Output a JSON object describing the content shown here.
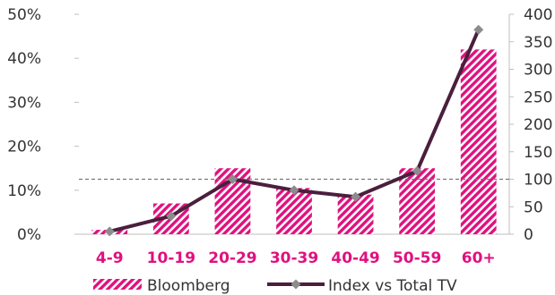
{
  "chart_data": {
    "type": "bar",
    "categories": [
      "4-9",
      "10-19",
      "20-29",
      "30-39",
      "40-49",
      "50-59",
      "60+"
    ],
    "series": [
      {
        "name": "Bloomberg",
        "type": "bar",
        "axis": "left",
        "values": [
          0.01,
          0.07,
          0.15,
          0.105,
          0.09,
          0.15,
          0.42
        ],
        "color": "#e0117f"
      },
      {
        "name": "Index vs Total TV",
        "type": "line",
        "axis": "right",
        "values": [
          5,
          33,
          100,
          80,
          68,
          115,
          372
        ],
        "color": "#4a1f3d",
        "marker_color": "#8c8c8c"
      }
    ],
    "y_left": {
      "range": [
        0,
        0.5
      ],
      "ticks": [
        "0%",
        "10%",
        "20%",
        "30%",
        "40%",
        "50%"
      ]
    },
    "y_right": {
      "range": [
        0,
        400
      ],
      "ticks": [
        "0",
        "50",
        "100",
        "150",
        "200",
        "250",
        "300",
        "350",
        "400"
      ]
    },
    "reference_line": {
      "axis": "right",
      "value": 100,
      "style": "dashed",
      "color": "#777777"
    },
    "category_label_color": "#e0117f",
    "legend": {
      "placement": "bottom",
      "entries": [
        "Bloomberg",
        "Index vs Total TV"
      ]
    },
    "grid": false
  }
}
